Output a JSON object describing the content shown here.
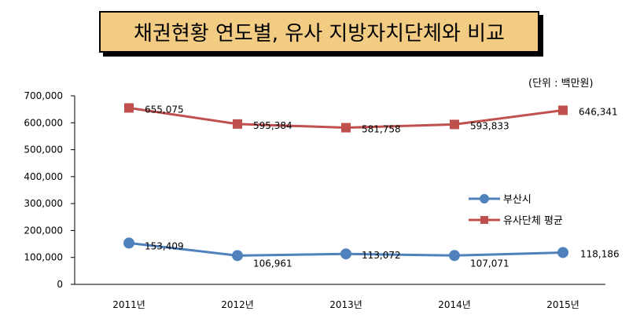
{
  "title": "채권현황 연도별, 유사 지방자치단체와 비교",
  "unit": "(단위 : 백만원)",
  "colors": {
    "busan": "#4f81bd",
    "average": "#c0504d",
    "title_bg": "#f3cc84"
  },
  "chart_data": {
    "type": "line",
    "categories": [
      "2011년",
      "2012년",
      "2013년",
      "2014년",
      "2015년"
    ],
    "series": [
      {
        "name": "부산시",
        "values": [
          153409,
          106961,
          113072,
          107071,
          118186
        ],
        "labels": [
          "153,409",
          "106,961",
          "113,072",
          "107,071",
          "118,186"
        ],
        "marker": "circle"
      },
      {
        "name": "유사단체 평균",
        "values": [
          655075,
          595384,
          581758,
          593833,
          646341
        ],
        "labels": [
          "655,075",
          "595,384",
          "581,758",
          "593,833",
          "646,341"
        ],
        "marker": "square"
      }
    ],
    "ylim": [
      0,
      700000
    ],
    "yticks": [
      "0",
      "100,000",
      "200,000",
      "300,000",
      "400,000",
      "500,000",
      "600,000",
      "700,000"
    ],
    "legend": "right"
  }
}
